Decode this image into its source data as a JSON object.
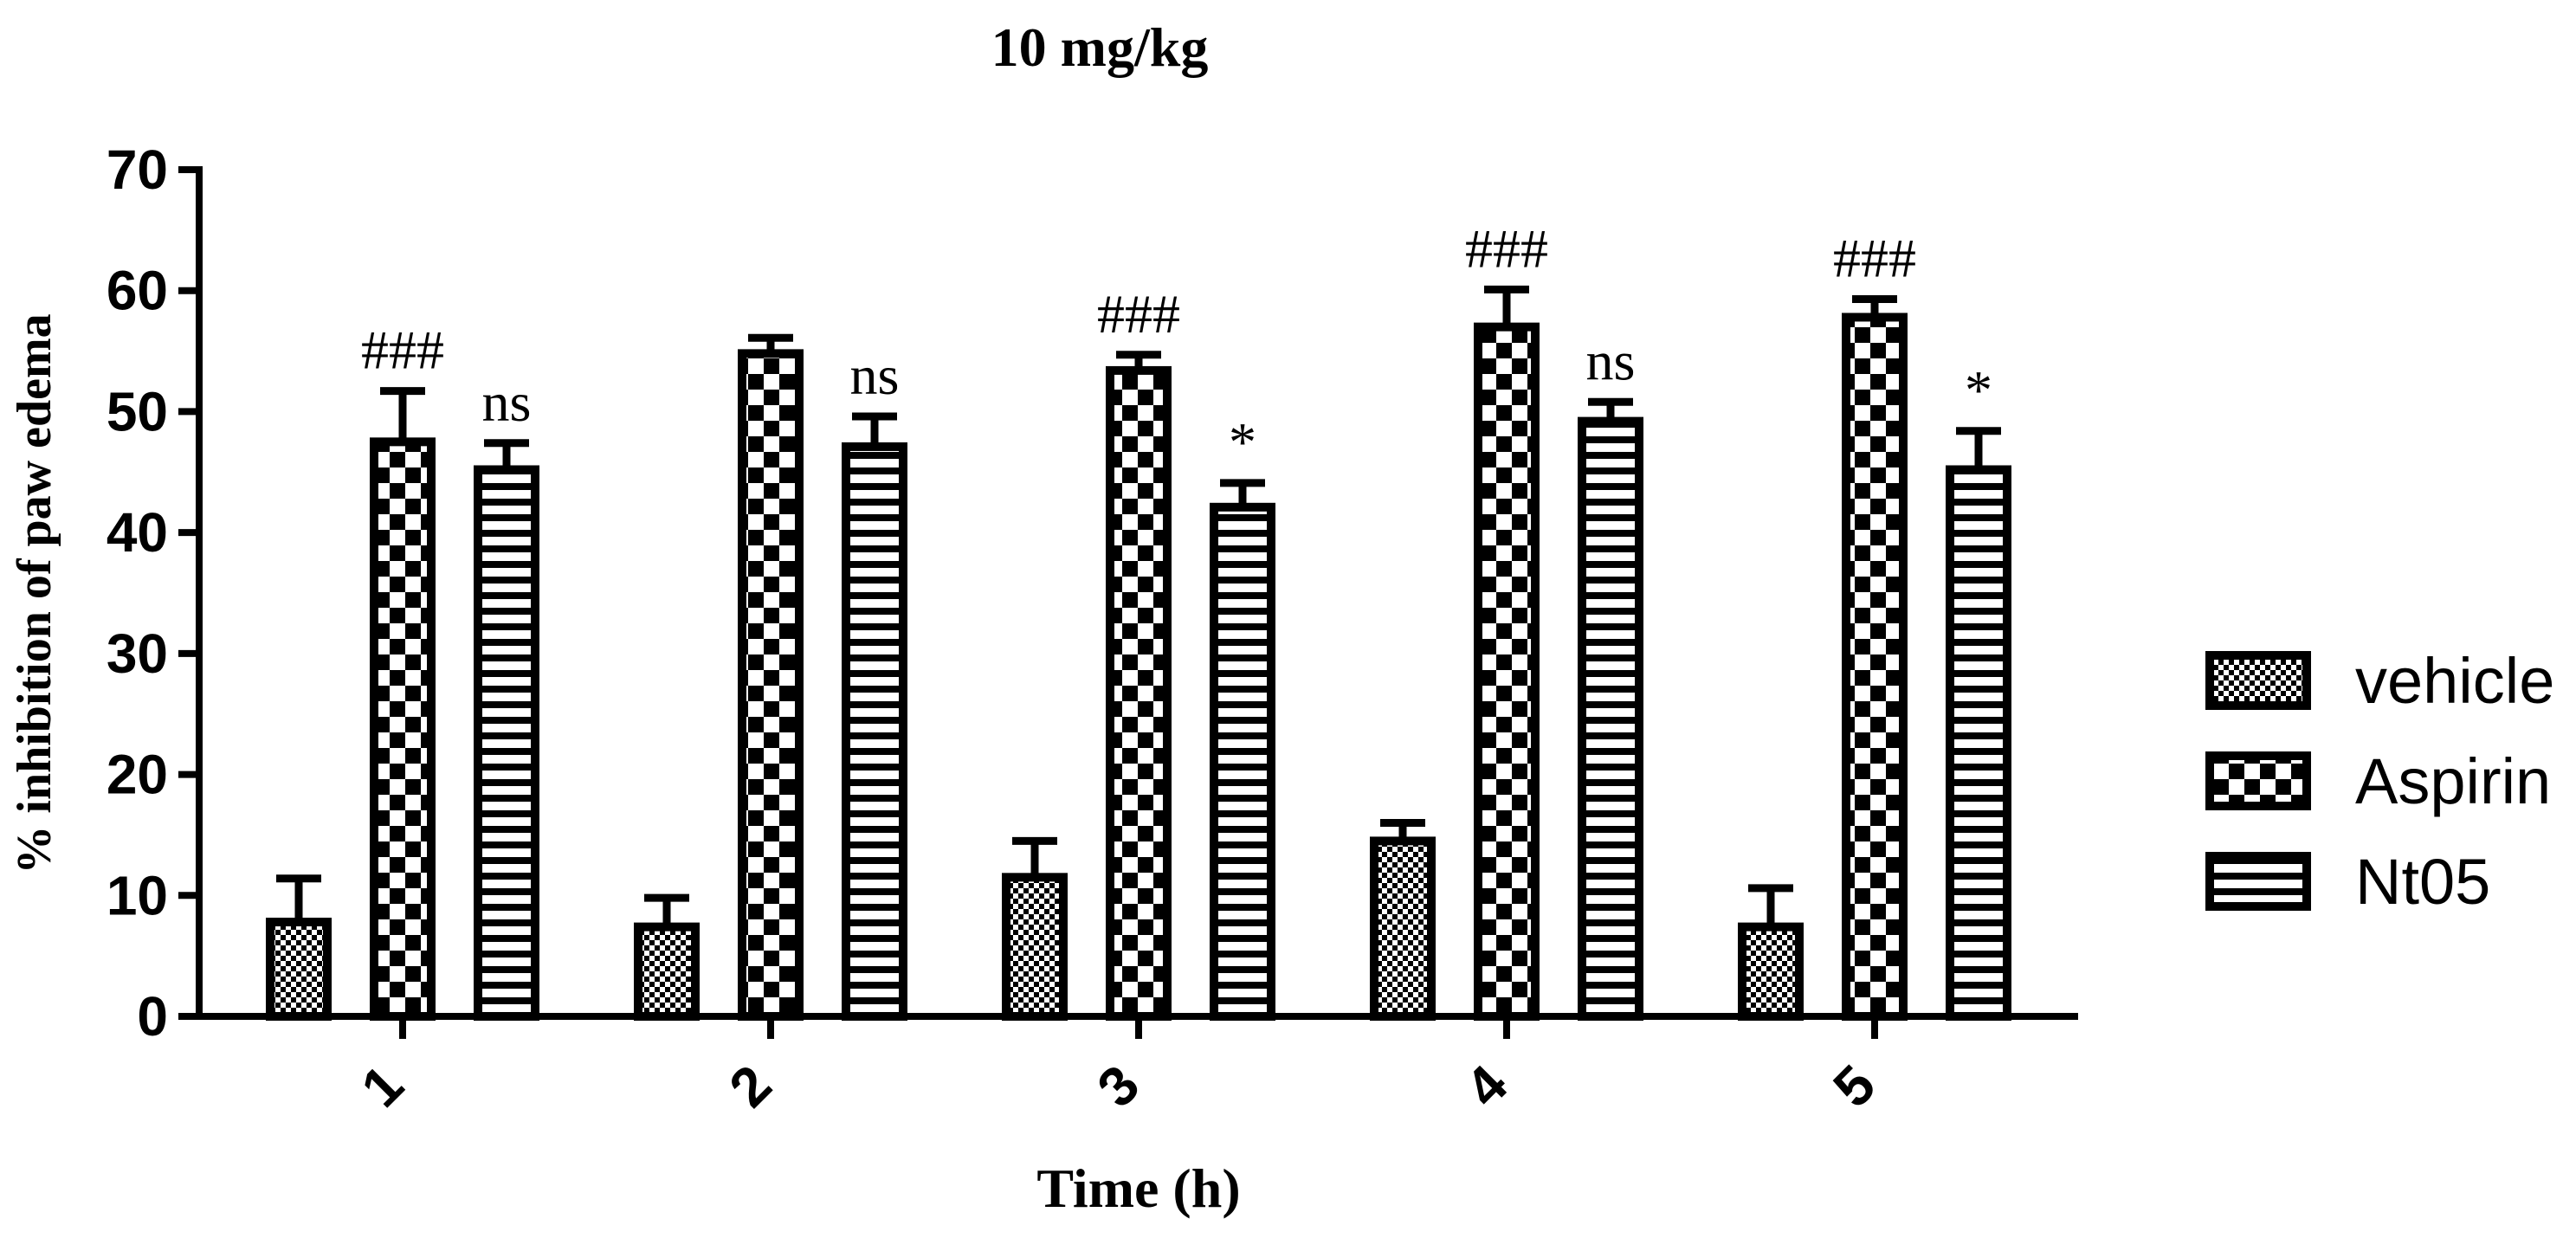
{
  "chart_data": {
    "type": "bar",
    "title": "10 mg/kg",
    "xlabel": "Time (h)",
    "ylabel": "% inhibition of paw edema",
    "ylim": [
      0,
      70
    ],
    "yticks": [
      "0",
      "10",
      "20",
      "30",
      "40",
      "50",
      "60",
      "70"
    ],
    "categories": [
      "1",
      "2",
      "3",
      "4",
      "5"
    ],
    "series": [
      {
        "name": "vehicle",
        "pattern": "fine-checker",
        "values": [
          7.8,
          7.4,
          11.5,
          14.5,
          7.4
        ],
        "errors": [
          3.6,
          2.4,
          3.0,
          1.5,
          3.2
        ],
        "annotations": [
          "",
          "",
          "",
          "",
          ""
        ]
      },
      {
        "name": "Aspirin",
        "pattern": "coarse-checker",
        "values": [
          47.5,
          54.8,
          53.4,
          57.0,
          57.8
        ],
        "errors": [
          4.2,
          1.3,
          1.3,
          3.1,
          1.5
        ],
        "annotations": [
          "###",
          "",
          "###",
          "###",
          "###"
        ]
      },
      {
        "name": "Nt05",
        "pattern": "horizontal-stripes",
        "values": [
          45.2,
          47.1,
          42.1,
          49.2,
          45.2
        ],
        "errors": [
          2.2,
          2.5,
          2.0,
          1.6,
          3.2
        ],
        "annotations": [
          "ns",
          "ns",
          "*",
          "ns",
          "*"
        ]
      }
    ],
    "legend_position": "right",
    "grid": false
  },
  "colors": {
    "ink": "#000000",
    "background": "#ffffff"
  }
}
